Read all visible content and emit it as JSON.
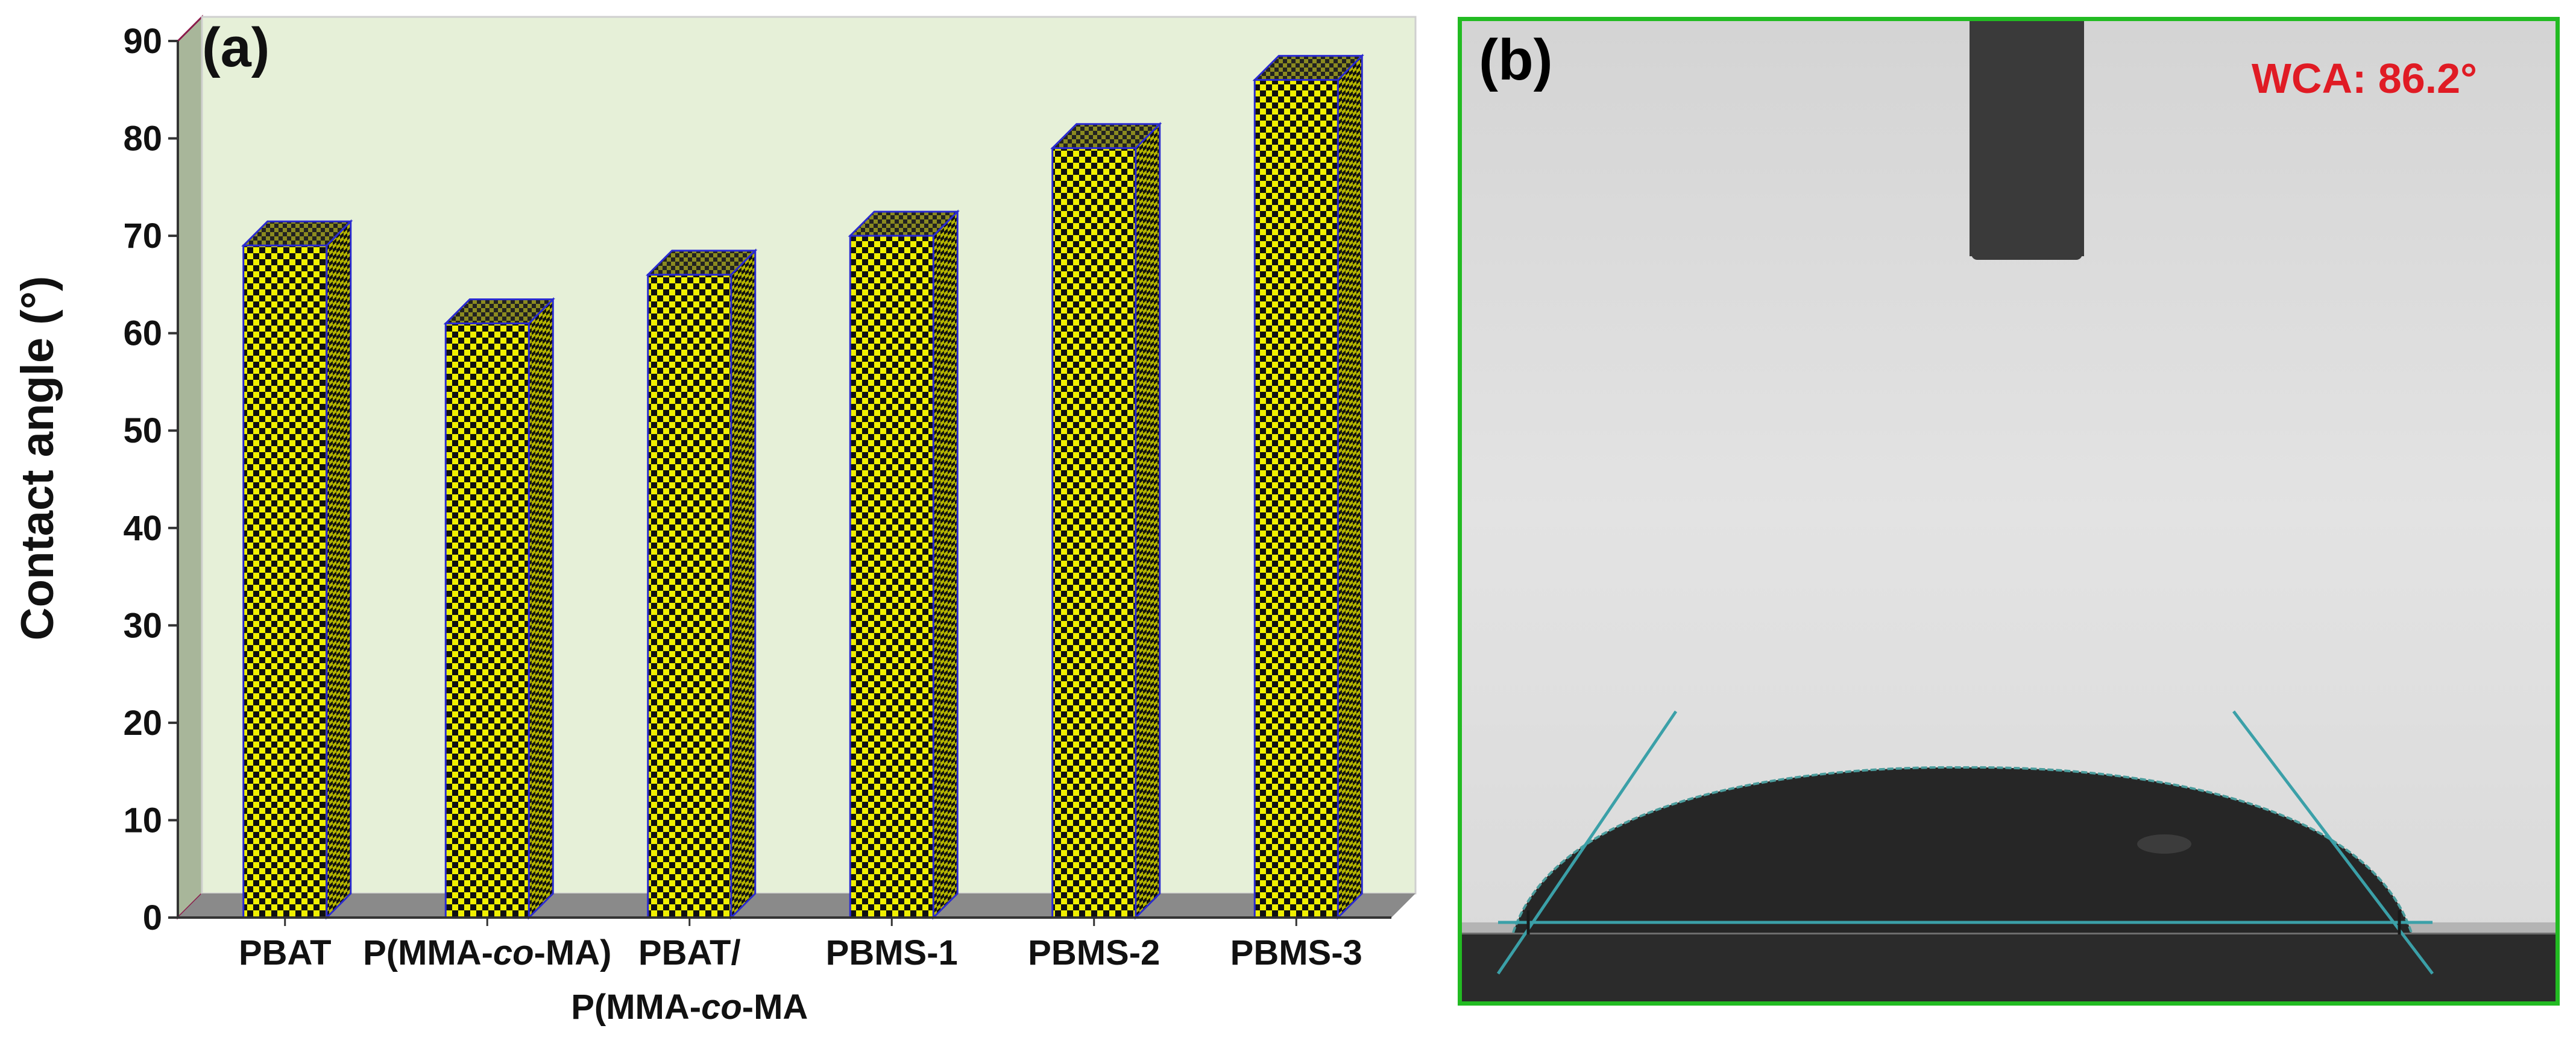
{
  "chart_data": {
    "type": "bar",
    "panel_label": "(a)",
    "ylabel": "Contact angle (°)",
    "xlabel": "",
    "ylim": [
      0,
      90
    ],
    "yticks": [
      0,
      10,
      20,
      30,
      40,
      50,
      60,
      70,
      80,
      90
    ],
    "categories": [
      [
        "PBAT"
      ],
      [
        "P(MMA-",
        "co",
        "-MA)"
      ],
      [
        "PBAT/",
        "P(MMA-",
        "co",
        "-MA"
      ],
      [
        "PBMS-1"
      ],
      [
        "PBMS-2"
      ],
      [
        "PBMS-3"
      ]
    ],
    "values": [
      69,
      61,
      66,
      70,
      79,
      86
    ],
    "grid": false,
    "colors": {
      "bar_face": "#f0f000",
      "bar_check": "#111111",
      "bar_edge": "#2a2ad0",
      "wall": "#e6f0d8",
      "floor": "#8a8a8a"
    }
  },
  "photo": {
    "panel_label": "(b)",
    "wca_text": "WCA: 86.2°"
  }
}
